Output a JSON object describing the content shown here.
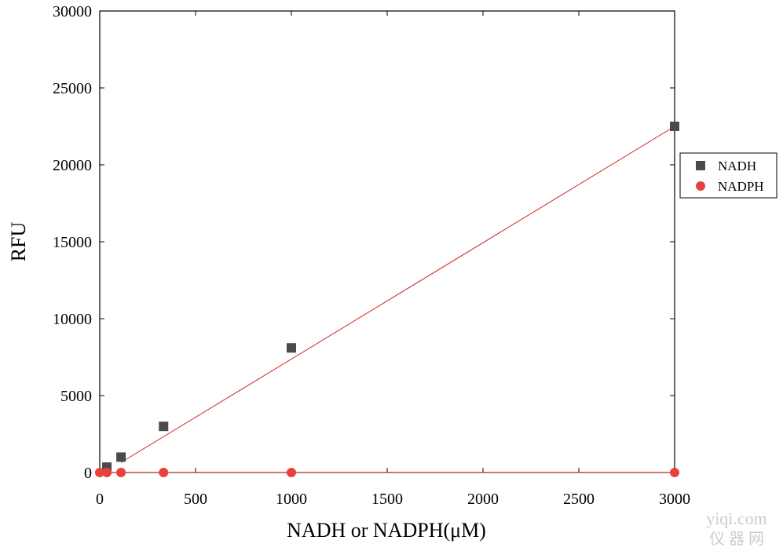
{
  "chart_data": {
    "type": "scatter",
    "x_label": "NADH or NADPH(μM)",
    "y_label": "RFU",
    "series": [
      {
        "name": "NADH",
        "color": "#4a4a4a",
        "marker": "square",
        "x": [
          37,
          111,
          333,
          1000,
          3000
        ],
        "values": [
          350,
          1000,
          3000,
          8100,
          22500
        ]
      },
      {
        "name": "NADPH",
        "color": "#e8403c",
        "marker": "circle",
        "x": [
          0,
          37,
          111,
          333,
          1000,
          3000
        ],
        "values": [
          0,
          0,
          0,
          0,
          0,
          0
        ]
      }
    ],
    "fit_lines": [
      {
        "color": "#d42020",
        "x": [
          111,
          3000
        ],
        "values": [
          650,
          22500
        ]
      },
      {
        "color": "#d42020",
        "x": [
          0,
          3000
        ],
        "values": [
          0,
          0
        ]
      }
    ],
    "xlim": [
      0,
      3000
    ],
    "xticks": [
      0,
      500,
      1000,
      1500,
      2000,
      2500,
      3000
    ],
    "ylim": [
      0,
      30000
    ],
    "yticks": [
      0,
      5000,
      10000,
      15000,
      20000,
      25000,
      30000
    ],
    "legend": "right",
    "watermark": [
      "yiqi.com",
      "仪 器 网"
    ]
  }
}
